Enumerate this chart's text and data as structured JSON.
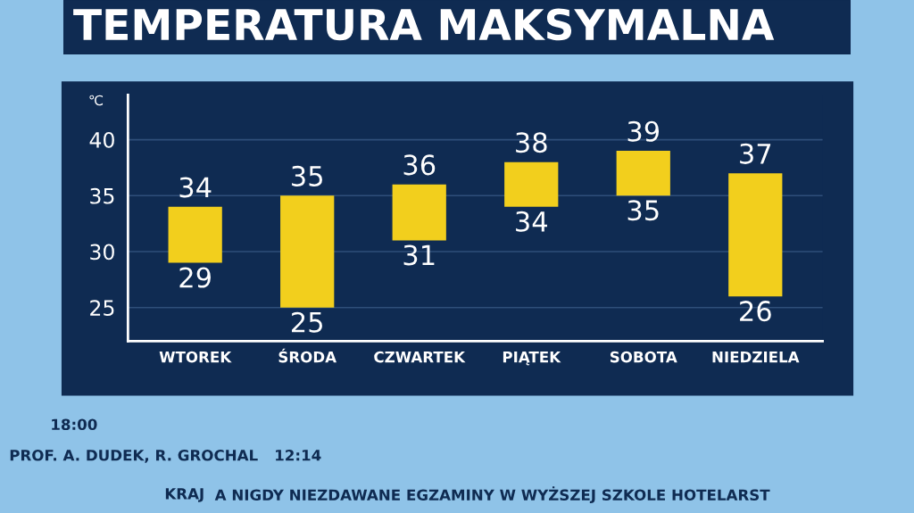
{
  "chart_data": {
    "type": "bar",
    "title": "TEMPERATURA MAKSYMALNA",
    "ylabel": "℃",
    "categories": [
      "WTOREK",
      "ŚRODA",
      "CZWARTEK",
      "PIĄTEK",
      "SOBOTA",
      "NIEDZIELA"
    ],
    "base": [
      29,
      25,
      31,
      34,
      35,
      26
    ],
    "values": [
      5,
      10,
      5,
      4,
      4,
      11
    ],
    "color": "#f2cf1d",
    "ylim": [
      22,
      44
    ],
    "yticks": [
      25,
      30,
      35,
      40
    ],
    "grid": "y",
    "annotations": [
      {
        "text": "34",
        "x": "WTOREK",
        "y": 34
      },
      {
        "text": "29",
        "x": "WTOREK",
        "y": 29
      },
      {
        "text": "35",
        "x": "ŚRODA",
        "y": 35
      },
      {
        "text": "25",
        "x": "ŚRODA",
        "y": 25
      },
      {
        "text": "36",
        "x": "CZWARTEK",
        "y": 36
      },
      {
        "text": "31",
        "x": "CZWARTEK",
        "y": 31
      },
      {
        "text": "38",
        "x": "PIĄTEK",
        "y": 38
      },
      {
        "text": "34",
        "x": "PIĄTEK",
        "y": 34
      },
      {
        "text": "39",
        "x": "SOBOTA",
        "y": 39
      },
      {
        "text": "35",
        "x": "SOBOTA",
        "y": 35
      },
      {
        "text": "37",
        "x": "NIEDZIELA",
        "y": 37
      },
      {
        "text": "26",
        "x": "NIEDZIELA",
        "y": 26
      },
      "18:00",
      "PROF. A. DUDEK, R. GROCHAL",
      "12:14",
      "KRAJ",
      "A NIGDY NIEZDAWANE EGZAMINY W WYŻSZEJ SZKOLE HOTELARST"
    ]
  }
}
